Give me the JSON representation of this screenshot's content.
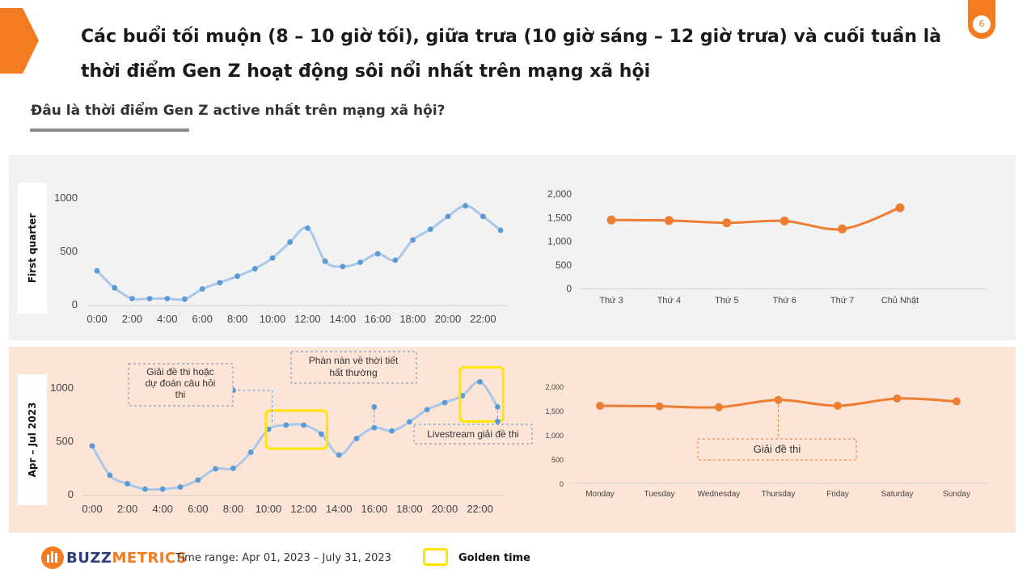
{
  "header": {
    "headline": "Các buổi tối muộn (8 – 10 giờ tối), giữa trưa (10 giờ sáng – 12 giờ trưa) và cuối tuần là thời điểm Gen Z hoạt động sôi nổi nhất trên mạng xã hội",
    "page_number": "6",
    "subtitle": "Đâu là thời điểm Gen Z active nhất trên mạng xã hội?"
  },
  "rows": [
    {
      "label": "First quarter"
    },
    {
      "label": "Apr – Jul 2023"
    }
  ],
  "colors": {
    "accent": "#f47c20",
    "hourly_line": "#a9c7e8",
    "hourly_point": "#5b9bd5",
    "weekly_line": "#ed7d31",
    "band_gray": "#f2f2f3",
    "band_peach": "#fce4d6",
    "golden": "#ffe500"
  },
  "chart_data": [
    {
      "type": "line",
      "row": "First quarter",
      "x": [
        "0:00",
        "1:00",
        "2:00",
        "3:00",
        "4:00",
        "5:00",
        "6:00",
        "7:00",
        "8:00",
        "9:00",
        "10:00",
        "11:00",
        "12:00",
        "13:00",
        "14:00",
        "15:00",
        "16:00",
        "17:00",
        "18:00",
        "19:00",
        "20:00",
        "21:00",
        "22:00",
        "23:00"
      ],
      "x_tick_labels": [
        "0:00",
        "2:00",
        "4:00",
        "6:00",
        "8:00",
        "10:00",
        "12:00",
        "14:00",
        "16:00",
        "18:00",
        "20:00",
        "22:00"
      ],
      "values": [
        310,
        150,
        50,
        50,
        50,
        45,
        140,
        200,
        260,
        330,
        430,
        580,
        710,
        400,
        350,
        390,
        470,
        410,
        600,
        700,
        820,
        920,
        820,
        690
      ],
      "ylim": [
        0,
        1100
      ],
      "y_ticks": [
        0,
        500,
        1000
      ],
      "y_tick_labels": [
        "0",
        "500",
        "1000"
      ],
      "grid": false
    },
    {
      "type": "line",
      "row": "First quarter",
      "categories": [
        "Thứ 3",
        "Thứ 4",
        "Thứ 5",
        "Thứ 6",
        "Thứ 7",
        "Chủ Nhật"
      ],
      "values": [
        1450,
        1440,
        1390,
        1430,
        1260,
        1710
      ],
      "ylim": [
        0,
        2000
      ],
      "y_ticks": [
        0,
        500,
        1000,
        1500,
        2000
      ],
      "y_tick_labels": [
        "0",
        "500",
        "1,000",
        "1,500",
        "2,000"
      ],
      "grid": false
    },
    {
      "type": "line",
      "row": "Apr – Jul 2023",
      "x": [
        "0:00",
        "1:00",
        "2:00",
        "3:00",
        "4:00",
        "5:00",
        "6:00",
        "7:00",
        "8:00",
        "9:00",
        "10:00",
        "11:00",
        "12:00",
        "13:00",
        "14:00",
        "15:00",
        "16:00",
        "17:00",
        "18:00",
        "19:00",
        "20:00",
        "21:00",
        "22:00",
        "23:00"
      ],
      "x_tick_labels": [
        "0:00",
        "2:00",
        "4:00",
        "6:00",
        "8:00",
        "10:00",
        "12:00",
        "14:00",
        "16:00",
        "18:00",
        "20:00",
        "22:00"
      ],
      "values": [
        450,
        175,
        95,
        45,
        45,
        65,
        130,
        235,
        240,
        390,
        605,
        645,
        645,
        560,
        365,
        520,
        620,
        590,
        675,
        790,
        855,
        920,
        1050,
        815
      ],
      "outliers": [
        {
          "x": "8:00",
          "value": 970
        },
        {
          "x": "16:00",
          "value": 815
        },
        {
          "x": "23:00",
          "value": 680
        }
      ],
      "ylim": [
        0,
        1150
      ],
      "y_ticks": [
        0,
        500,
        1000
      ],
      "y_tick_labels": [
        "0",
        "500",
        "1000"
      ],
      "annotations": [
        "Giải đề thi hoặc dự đoán câu hỏi thi",
        "Phàn nàn về thời tiết thất thường",
        "Livestream giải đề thi"
      ],
      "golden_time_ranges": [
        [
          "10:00",
          "13:00"
        ],
        [
          "21:00",
          "23:00"
        ]
      ],
      "grid": false
    },
    {
      "type": "line",
      "row": "Apr – Jul 2023",
      "categories": [
        "Monday",
        "Tuesday",
        "Wednesday",
        "Thursday",
        "Friday",
        "Saturday",
        "Sunday"
      ],
      "values": [
        1600,
        1590,
        1570,
        1720,
        1600,
        1750,
        1690
      ],
      "ylim": [
        0,
        2000
      ],
      "y_ticks": [
        0,
        500,
        1000,
        1500,
        2000
      ],
      "y_tick_labels": [
        "0",
        "500",
        "1,000",
        "1,500",
        "2,000"
      ],
      "annotations": [
        "Giải đề thi"
      ],
      "grid": false
    }
  ],
  "footer": {
    "brand_part1": "BUZZ",
    "brand_part2": "METRICS",
    "time_range": "Time range: Apr 01, 2023 – July 31, 2023",
    "legend_label": "Golden time"
  }
}
